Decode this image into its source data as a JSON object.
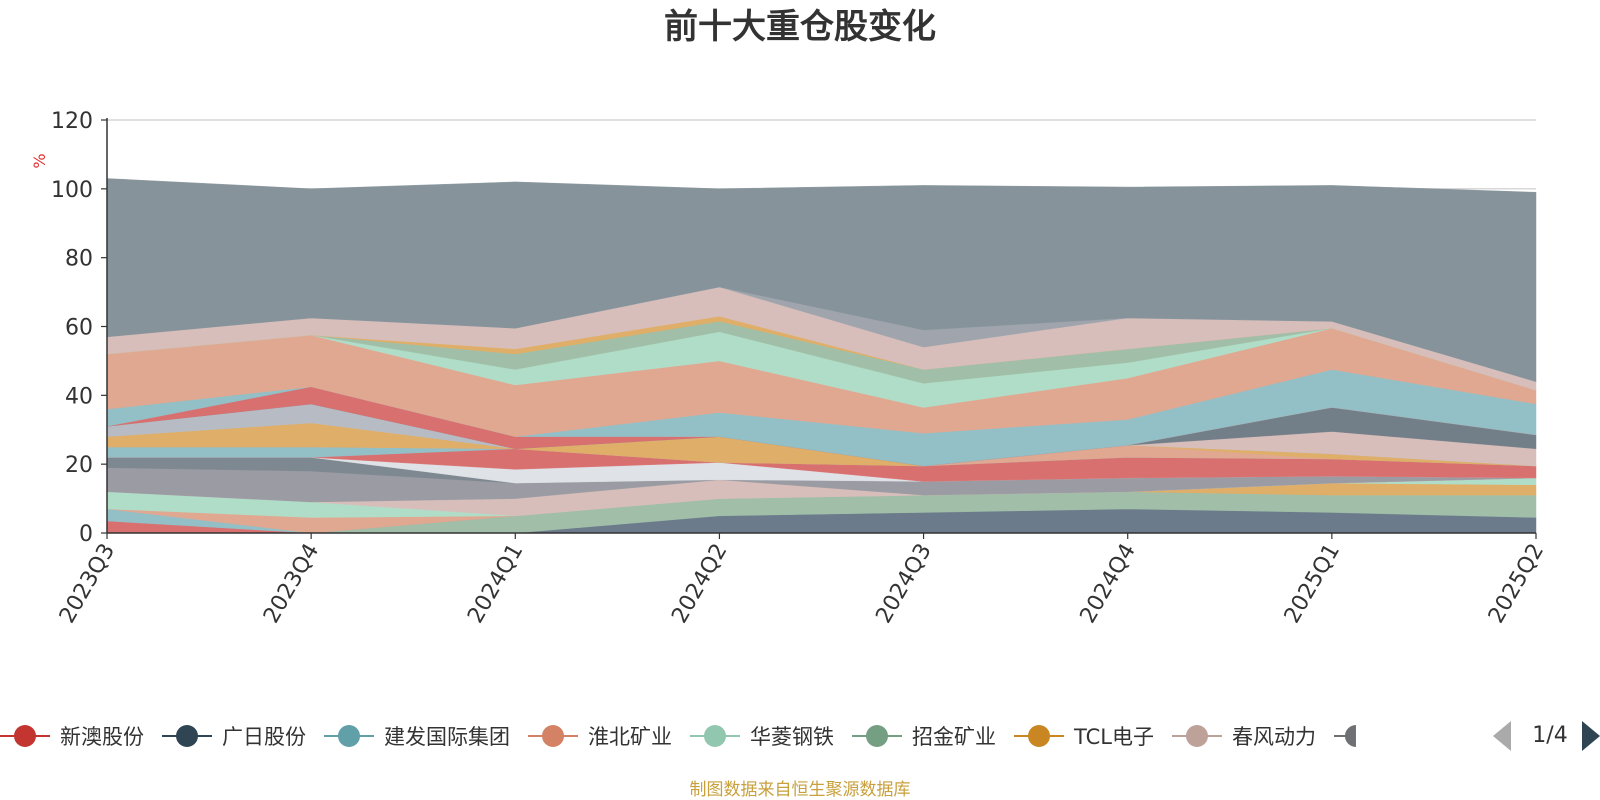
{
  "chart_data": {
    "type": "area",
    "stacked": true,
    "title": "前十大重仓股变化",
    "ylabel": "%",
    "ylim": [
      0,
      120
    ],
    "y_ticks": [
      0,
      20,
      40,
      60,
      80,
      100,
      120
    ],
    "grid": true,
    "legend_position": "bottom",
    "categories": [
      "2023Q3",
      "2023Q4",
      "2024Q1",
      "2024Q2",
      "2024Q3",
      "2024Q4",
      "2025Q1",
      "2025Q2"
    ],
    "series": [
      {
        "name": "广日股份",
        "color": "#6b7b8c",
        "values": [
          0,
          0,
          0,
          5,
          6,
          7,
          6,
          4.5
        ]
      },
      {
        "name": "招金矿业",
        "color": "#a1bfa8",
        "values": [
          0,
          0,
          5,
          5,
          5,
          5,
          5,
          6.5
        ]
      },
      {
        "name": "TCL电子",
        "color": "#dfae68",
        "values": [
          0,
          0,
          0,
          0,
          0,
          0,
          3.5,
          3
        ]
      },
      {
        "name": "华菱钢铁",
        "color": "#b0ddc8",
        "values": [
          0,
          0,
          0,
          0,
          0,
          0,
          0,
          2
        ]
      },
      {
        "name": "新澳股份",
        "color": "#d97070",
        "values": [
          3.5,
          0,
          0,
          0,
          0,
          0,
          0,
          0
        ]
      },
      {
        "name": "建发国际集团",
        "color": "#93bfc6",
        "values": [
          3.5,
          0,
          0,
          0,
          0,
          0,
          0,
          0
        ]
      },
      {
        "name": "淮北矿业",
        "color": "#e0a891",
        "values": [
          0,
          4.5,
          0,
          0,
          0,
          0,
          0,
          0
        ]
      },
      {
        "name": "华菱钢铁",
        "color": "#b0ddc8",
        "values": [
          5,
          4.5,
          0,
          0,
          0,
          0,
          0,
          0
        ]
      },
      {
        "name": "春风动力",
        "color": "#d7bebb",
        "values": [
          0,
          0,
          5,
          5.5,
          0,
          0,
          0,
          0
        ]
      },
      {
        "name": "",
        "color": "#9b9ba3",
        "values": [
          7,
          9,
          4.5,
          0,
          4,
          4,
          2,
          0
        ]
      },
      {
        "name": "",
        "color": "#7e8890",
        "values": [
          3,
          4,
          0,
          0,
          0,
          0,
          0,
          0
        ]
      },
      {
        "name": "",
        "color": "#dfe2e6",
        "values": [
          0,
          0,
          4,
          5,
          0,
          0,
          0,
          0
        ]
      },
      {
        "name": "新澳股份",
        "color": "#d97070",
        "values": [
          0,
          0,
          6,
          0,
          4.5,
          6,
          5,
          3.5
        ]
      },
      {
        "name": "建发国际集团",
        "color": "#93bfc6",
        "values": [
          3,
          3,
          0,
          0,
          0,
          0,
          0,
          0
        ]
      },
      {
        "name": "淮北矿业",
        "color": "#e0a891",
        "values": [
          0,
          0,
          0,
          0,
          0,
          3.5,
          0,
          0
        ]
      },
      {
        "name": "TCL电子",
        "color": "#dfae68",
        "values": [
          3,
          7,
          0,
          7.5,
          0,
          0,
          1.5,
          0
        ]
      },
      {
        "name": "",
        "color": "#b7bcc4",
        "values": [
          3,
          5.5,
          0,
          0,
          0,
          0,
          0,
          0
        ]
      },
      {
        "name": "",
        "color": "#d7bebb",
        "values": [
          0,
          0,
          0,
          0,
          0,
          0,
          6.5,
          5
        ]
      },
      {
        "name": "",
        "color": "#727e88",
        "values": [
          0,
          0,
          0,
          0,
          0,
          0,
          7,
          4
        ]
      },
      {
        "name": "新澳股份",
        "color": "#d97070",
        "values": [
          0,
          5,
          3.5,
          0,
          0,
          0,
          0,
          0
        ]
      },
      {
        "name": "建发国际集团",
        "color": "#93bfc6",
        "values": [
          5,
          0,
          0,
          7,
          9.5,
          7.5,
          11,
          9
        ]
      },
      {
        "name": "淮北矿业",
        "color": "#e0a891",
        "values": [
          16,
          15,
          15,
          15,
          7.5,
          12,
          12,
          4
        ]
      },
      {
        "name": "华菱钢铁",
        "color": "#b0ddc8",
        "values": [
          0,
          0,
          4.5,
          8.5,
          7,
          4.5,
          0,
          0
        ]
      },
      {
        "name": "招金矿业",
        "color": "#a1bfa8",
        "values": [
          0,
          0,
          4.5,
          3,
          4,
          4,
          0,
          0
        ]
      },
      {
        "name": "TCL电子",
        "color": "#dfae68",
        "values": [
          0,
          0,
          1.5,
          1.5,
          0,
          0,
          0,
          0
        ]
      },
      {
        "name": "春风动力",
        "color": "#d7bebb",
        "values": [
          5,
          5,
          6,
          8.5,
          6.5,
          9,
          2,
          2.5
        ]
      },
      {
        "name": "",
        "color": "#a0a5ad",
        "values": [
          0,
          0,
          0,
          0,
          5,
          0,
          0,
          0
        ]
      },
      {
        "name": "",
        "color": "#86939b",
        "values": [
          46,
          37.5,
          42.5,
          28.5,
          42,
          38,
          39.5,
          55
        ]
      }
    ],
    "legend": [
      {
        "name": "新澳股份",
        "color": "#c23531"
      },
      {
        "name": "广日股份",
        "color": "#2f4554"
      },
      {
        "name": "建发国际集团",
        "color": "#61a0a8"
      },
      {
        "name": "淮北矿业",
        "color": "#d48265"
      },
      {
        "name": "华菱钢铁",
        "color": "#91c7ae"
      },
      {
        "name": "招金矿业",
        "color": "#749f83"
      },
      {
        "name": "TCL电子",
        "color": "#ca8622"
      },
      {
        "name": "春风动力",
        "color": "#bda29a"
      }
    ],
    "legend_page": "1/4",
    "source_note": "制图数据来自恒生聚源数据库"
  }
}
